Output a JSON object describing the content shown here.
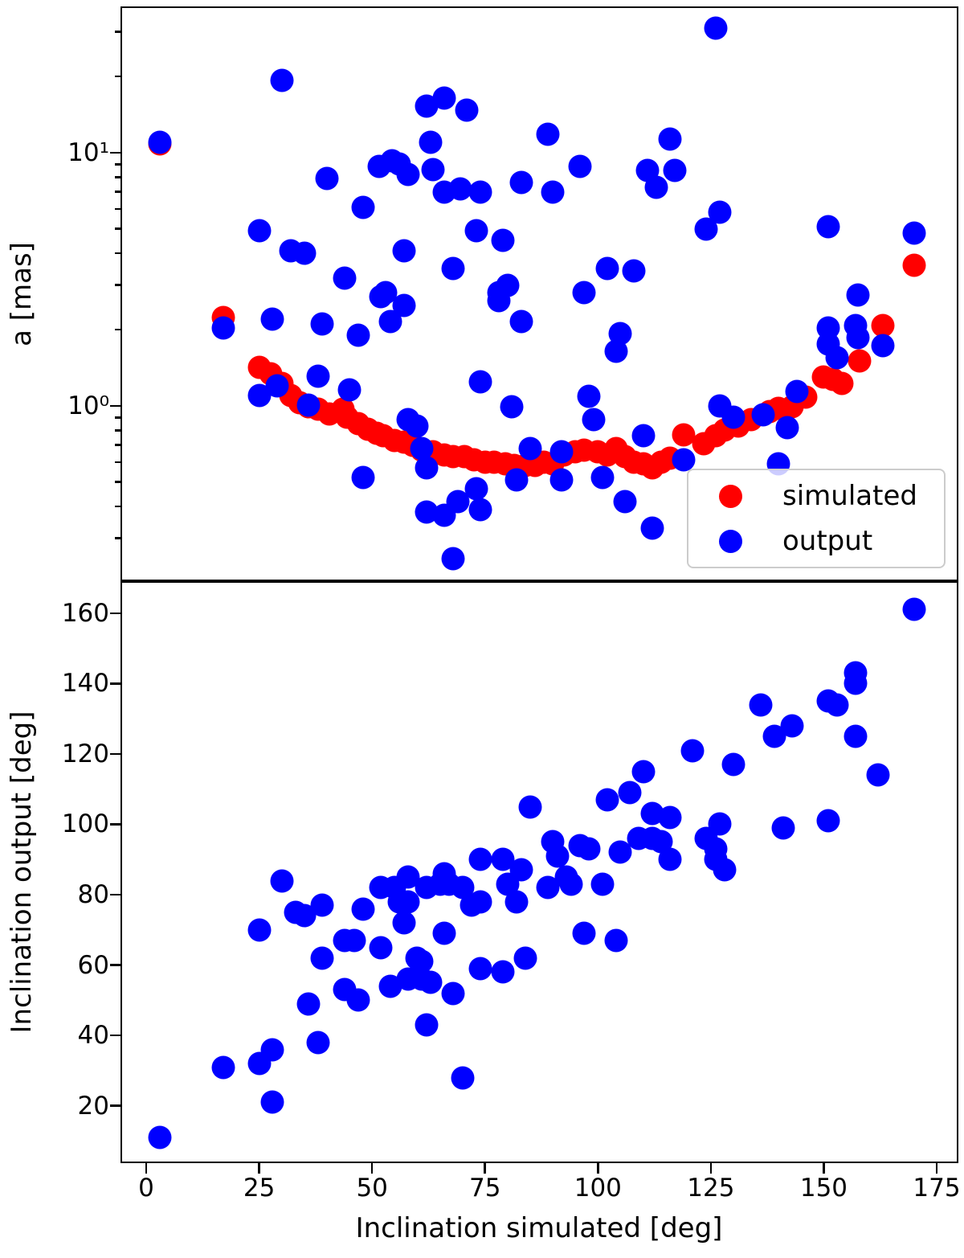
{
  "chart_data": [
    {
      "type": "scatter",
      "title": "",
      "xlabel": "",
      "ylabel": "a [mas]",
      "yscale": "log",
      "xlim": [
        -5.7,
        179.8
      ],
      "ylim": [
        0.203,
        37.8
      ],
      "grid": false,
      "yticks_major": {
        "values": [
          1,
          10
        ],
        "labels": [
          "10⁰",
          "10¹"
        ]
      },
      "yticks_minor": [
        0.3,
        0.4,
        0.5,
        0.6,
        0.7,
        0.8,
        0.9,
        2,
        3,
        4,
        5,
        6,
        7,
        8,
        9,
        20,
        30
      ],
      "legend": {
        "position": "lower right",
        "entries": [
          {
            "label": "simulated",
            "color": "#ff0000"
          },
          {
            "label": "output",
            "color": "#0000ff"
          }
        ]
      },
      "series": [
        {
          "name": "simulated",
          "color": "#ff0000",
          "marker": "circle",
          "points": [
            [
              3,
              10.8
            ],
            [
              17,
              2.23
            ],
            [
              25,
              1.42
            ],
            [
              27.5,
              1.34
            ],
            [
              30,
              1.23
            ],
            [
              32,
              1.1
            ],
            [
              34,
              1.03
            ],
            [
              36,
              0.99
            ],
            [
              38,
              0.97
            ],
            [
              40.5,
              0.93
            ],
            [
              43.5,
              0.97
            ],
            [
              44.5,
              0.9
            ],
            [
              47,
              0.85
            ],
            [
              49,
              0.81
            ],
            [
              51,
              0.78
            ],
            [
              52.5,
              0.76
            ],
            [
              55,
              0.73
            ],
            [
              57,
              0.72
            ],
            [
              59,
              0.7
            ],
            [
              61,
              0.67
            ],
            [
              63.5,
              0.66
            ],
            [
              66,
              0.64
            ],
            [
              68,
              0.63
            ],
            [
              70.5,
              0.63
            ],
            [
              72.5,
              0.61
            ],
            [
              75,
              0.6
            ],
            [
              77,
              0.6
            ],
            [
              79.5,
              0.59
            ],
            [
              81.5,
              0.58
            ],
            [
              84,
              0.58
            ],
            [
              86,
              0.58
            ],
            [
              88,
              0.6
            ],
            [
              90,
              0.59
            ],
            [
              92.5,
              0.64
            ],
            [
              95,
              0.66
            ],
            [
              97,
              0.67
            ],
            [
              100,
              0.66
            ],
            [
              102,
              0.64
            ],
            [
              104,
              0.68
            ],
            [
              106,
              0.63
            ],
            [
              108,
              0.6
            ],
            [
              110,
              0.59
            ],
            [
              112,
              0.57
            ],
            [
              114,
              0.6
            ],
            [
              116,
              0.62
            ],
            [
              119,
              0.77
            ],
            [
              123.5,
              0.71
            ],
            [
              126,
              0.76
            ],
            [
              128,
              0.8
            ],
            [
              131,
              0.83
            ],
            [
              134,
              0.88
            ],
            [
              138,
              0.95
            ],
            [
              140,
              0.98
            ],
            [
              143,
              0.99
            ],
            [
              146,
              1.08
            ],
            [
              150,
              1.3
            ],
            [
              152,
              1.27
            ],
            [
              154,
              1.23
            ],
            [
              158,
              1.5
            ],
            [
              163,
              2.07
            ],
            [
              170,
              3.6
            ]
          ]
        },
        {
          "name": "output",
          "color": "#0000ff",
          "marker": "circle",
          "points": [
            [
              30,
              19.3
            ],
            [
              3,
              11.0
            ],
            [
              62,
              15.3
            ],
            [
              66,
              16.4
            ],
            [
              71,
              14.7
            ],
            [
              63,
              11.0
            ],
            [
              51.5,
              8.8
            ],
            [
              54.5,
              9.3
            ],
            [
              56,
              9.0
            ],
            [
              58,
              8.2
            ],
            [
              63.5,
              8.6
            ],
            [
              40,
              7.9
            ],
            [
              66,
              7.0
            ],
            [
              69.5,
              7.2
            ],
            [
              74,
              7.0
            ],
            [
              83,
              7.6
            ],
            [
              48,
              6.1
            ],
            [
              25,
              4.9
            ],
            [
              32,
              4.1
            ],
            [
              35,
              4.0
            ],
            [
              73,
              4.9
            ],
            [
              79,
              4.5
            ],
            [
              57,
              4.1
            ],
            [
              68,
              3.5
            ],
            [
              44,
              3.2
            ],
            [
              53,
              2.8
            ],
            [
              80,
              3.0
            ],
            [
              78,
              2.8
            ],
            [
              126,
              31.0
            ],
            [
              89,
              11.8
            ],
            [
              116,
              11.3
            ],
            [
              96,
              8.8
            ],
            [
              111,
              8.5
            ],
            [
              117,
              8.5
            ],
            [
              90,
              7.0
            ],
            [
              113,
              7.3
            ],
            [
              127,
              5.8
            ],
            [
              124,
              5.0
            ],
            [
              151,
              5.1
            ],
            [
              170,
              4.8
            ],
            [
              102,
              3.5
            ],
            [
              108,
              3.4
            ],
            [
              97,
              2.8
            ],
            [
              17,
              2.03
            ],
            [
              28,
              2.2
            ],
            [
              39,
              2.1
            ],
            [
              47,
              1.9
            ],
            [
              54,
              2.15
            ],
            [
              57,
              2.5
            ],
            [
              52,
              2.7
            ],
            [
              78,
              2.6
            ],
            [
              83,
              2.15
            ],
            [
              25,
              1.1
            ],
            [
              29,
              1.2
            ],
            [
              38,
              1.31
            ],
            [
              36,
              1.01
            ],
            [
              45,
              1.16
            ],
            [
              58,
              0.88
            ],
            [
              60,
              0.83
            ],
            [
              61,
              0.68
            ],
            [
              62,
              0.57
            ],
            [
              48,
              0.52
            ],
            [
              74,
              1.24
            ],
            [
              81,
              0.99
            ],
            [
              85,
              0.68
            ],
            [
              82,
              0.51
            ],
            [
              73,
              0.47
            ],
            [
              69,
              0.42
            ],
            [
              74,
              0.39
            ],
            [
              62,
              0.38
            ],
            [
              66,
              0.37
            ],
            [
              68,
              0.25
            ],
            [
              105,
              1.93
            ],
            [
              104,
              1.64
            ],
            [
              98,
              1.09
            ],
            [
              99,
              0.88
            ],
            [
              92,
              0.66
            ],
            [
              92,
              0.51
            ],
            [
              101,
              0.52
            ],
            [
              106,
              0.42
            ],
            [
              112,
              0.33
            ],
            [
              110,
              0.76
            ],
            [
              119,
              0.61
            ],
            [
              127,
              1.0
            ],
            [
              130,
              0.9
            ],
            [
              136.5,
              0.92
            ],
            [
              144,
              1.14
            ],
            [
              142,
              0.82
            ],
            [
              140,
              0.59
            ],
            [
              151,
              2.03
            ],
            [
              151,
              1.75
            ],
            [
              153,
              1.55
            ],
            [
              157,
              2.07
            ],
            [
              157.5,
              1.86
            ],
            [
              163,
              1.73
            ],
            [
              157.5,
              2.74
            ]
          ]
        }
      ]
    },
    {
      "type": "scatter",
      "title": "",
      "xlabel": "Inclination simulated [deg]",
      "ylabel": "Inclination output [deg]",
      "yscale": "linear",
      "xlim": [
        -5.7,
        179.8
      ],
      "ylim": [
        3.7,
        169.1
      ],
      "grid": false,
      "xticks": {
        "values": [
          0,
          25,
          50,
          75,
          100,
          125,
          150,
          175
        ],
        "labels": [
          "0",
          "25",
          "50",
          "75",
          "100",
          "125",
          "150",
          "175"
        ]
      },
      "yticks": {
        "values": [
          20,
          40,
          60,
          80,
          100,
          120,
          140,
          160
        ],
        "labels": [
          "20",
          "40",
          "60",
          "80",
          "100",
          "120",
          "140",
          "160"
        ]
      },
      "series": [
        {
          "name": "output",
          "color": "#0000ff",
          "marker": "circle",
          "points": [
            [
              3,
              11
            ],
            [
              17,
              31
            ],
            [
              25,
              32
            ],
            [
              25,
              70
            ],
            [
              28,
              36
            ],
            [
              28,
              21
            ],
            [
              30,
              84
            ],
            [
              33,
              75
            ],
            [
              35,
              74
            ],
            [
              36,
              49
            ],
            [
              38,
              38
            ],
            [
              39,
              77
            ],
            [
              39,
              62
            ],
            [
              44,
              67
            ],
            [
              44,
              53
            ],
            [
              46,
              67
            ],
            [
              47,
              50
            ],
            [
              48,
              76
            ],
            [
              52,
              82
            ],
            [
              52,
              65
            ],
            [
              54,
              54
            ],
            [
              55,
              82
            ],
            [
              56,
              78
            ],
            [
              57,
              72
            ],
            [
              58,
              78
            ],
            [
              58,
              56
            ],
            [
              58,
              85
            ],
            [
              60,
              62
            ],
            [
              61,
              61
            ],
            [
              61,
              56
            ],
            [
              62,
              82
            ],
            [
              62,
              43
            ],
            [
              63,
              55
            ],
            [
              65,
              83
            ],
            [
              66,
              86
            ],
            [
              66,
              69
            ],
            [
              67,
              83
            ],
            [
              68,
              52
            ],
            [
              70,
              82
            ],
            [
              70,
              28
            ],
            [
              72,
              77
            ],
            [
              74,
              78
            ],
            [
              74,
              90
            ],
            [
              74,
              59
            ],
            [
              79,
              90
            ],
            [
              79,
              58
            ],
            [
              80,
              83
            ],
            [
              82,
              78
            ],
            [
              83,
              87
            ],
            [
              84,
              62
            ],
            [
              85,
              105
            ],
            [
              89,
              82
            ],
            [
              90,
              95
            ],
            [
              91,
              91
            ],
            [
              93,
              85
            ],
            [
              94,
              83
            ],
            [
              96,
              94
            ],
            [
              97,
              69
            ],
            [
              98,
              93
            ],
            [
              101,
              83
            ],
            [
              102,
              107
            ],
            [
              104,
              67
            ],
            [
              105,
              92
            ],
            [
              107,
              109
            ],
            [
              109,
              96
            ],
            [
              110,
              115
            ],
            [
              112,
              103
            ],
            [
              112,
              96
            ],
            [
              114,
              95
            ],
            [
              116,
              102
            ],
            [
              116,
              90
            ],
            [
              121,
              121
            ],
            [
              124,
              96
            ],
            [
              126,
              93
            ],
            [
              126,
              90
            ],
            [
              127,
              100
            ],
            [
              128,
              87
            ],
            [
              130,
              117
            ],
            [
              136,
              134
            ],
            [
              139,
              125
            ],
            [
              141,
              99
            ],
            [
              143,
              128
            ],
            [
              151,
              135
            ],
            [
              151,
              101
            ],
            [
              153,
              134
            ],
            [
              157,
              143
            ],
            [
              157,
              140
            ],
            [
              157,
              125
            ],
            [
              162,
              114
            ],
            [
              170,
              161
            ]
          ]
        }
      ]
    }
  ]
}
